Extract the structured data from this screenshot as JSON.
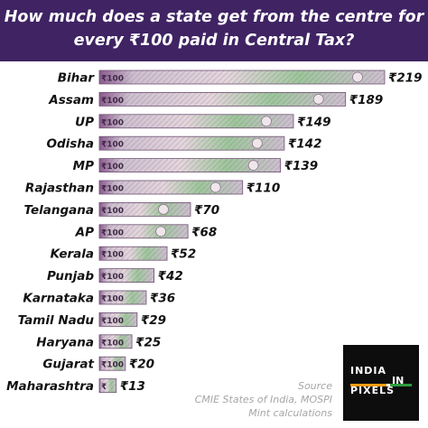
{
  "header": {
    "title_line1": "How much does a state get from the centre for",
    "title_line2": "every ₹100 paid in Central Tax?"
  },
  "chart_data": {
    "type": "bar",
    "orientation": "horizontal",
    "categories": [
      "Bihar",
      "Assam",
      "UP",
      "Odisha",
      "MP",
      "Rajasthan",
      "Telangana",
      "AP",
      "Kerala",
      "Punjab",
      "Karnataka",
      "Tamil Nadu",
      "Haryana",
      "Gujarat",
      "Maharashtra"
    ],
    "values": [
      219,
      189,
      149,
      142,
      139,
      110,
      70,
      68,
      52,
      42,
      36,
      29,
      25,
      20,
      13
    ],
    "value_labels": [
      "₹219",
      "₹189",
      "₹149",
      "₹142",
      "₹139",
      "₹110",
      "₹70",
      "₹68",
      "₹52",
      "₹42",
      "₹36",
      "₹29",
      "₹25",
      "₹20",
      "₹13"
    ],
    "title": "How much does a state get from the centre for every ₹100 paid in Central Tax?",
    "xlabel": "",
    "ylabel": "",
    "xlim": [
      0,
      219
    ],
    "grid": false,
    "bar_style": "₹100 banknote images"
  },
  "source": {
    "line1": "Source",
    "line2": "CMIE States of India, MOSPI",
    "line3": "Mint calculations"
  },
  "logo": {
    "word1": "INDIA",
    "word2": "IN",
    "word3": "PIXELS",
    "colors": [
      "#f39c12",
      "#ffffff",
      "#2e9d3f"
    ]
  },
  "colors": {
    "header_bg": "#3f2363",
    "note_base": "#cdbfcf",
    "note_accent": "#8b5a8f",
    "note_green": "#9cc79a",
    "logo_bg": "#0d0d0d"
  }
}
